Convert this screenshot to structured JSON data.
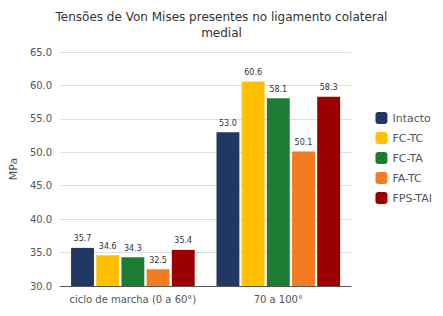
{
  "chart_data": {
    "type": "bar",
    "title": "Tensões de Von Mises presentes no ligamento colateral\nmedial",
    "y_label": "MPa",
    "categories": [
      "ciclo de marcha (0 a 60°)",
      "70 a 100°"
    ],
    "series": [
      {
        "name": "Intacto",
        "color": "#1f3864",
        "values": [
          35.7,
          53.0
        ],
        "value_labels": [
          "35.7",
          "53.0"
        ]
      },
      {
        "name": "FC-TC",
        "color": "#ffc000",
        "values": [
          34.6,
          60.6
        ],
        "value_labels": [
          "34.6",
          "60.6"
        ]
      },
      {
        "name": "FC-TA",
        "color": "#1e7b34",
        "values": [
          34.3,
          58.1
        ],
        "value_labels": [
          "34.3",
          "58.1"
        ]
      },
      {
        "name": "FA-TC",
        "color": "#f47c20",
        "values": [
          32.5,
          50.1
        ],
        "value_labels": [
          "32.5",
          "50.1"
        ]
      },
      {
        "name": "FPS-TAI",
        "color": "#9b0000",
        "values": [
          35.4,
          58.3
        ],
        "value_labels": [
          "35.4",
          "58.3"
        ]
      }
    ],
    "ylim": [
      30.0,
      65.0
    ],
    "yticks": [
      {
        "value": 30,
        "label": "30.0"
      },
      {
        "value": 35,
        "label": "35.0"
      },
      {
        "value": 40,
        "label": "40.0"
      },
      {
        "value": 45,
        "label": "45.0"
      },
      {
        "value": 50,
        "label": "50.0"
      },
      {
        "value": 55,
        "label": "55.0"
      },
      {
        "value": 60,
        "label": "60.0"
      },
      {
        "value": 65,
        "label": "65.0"
      }
    ],
    "grid": true,
    "legend": "right",
    "data_labels": true
  }
}
